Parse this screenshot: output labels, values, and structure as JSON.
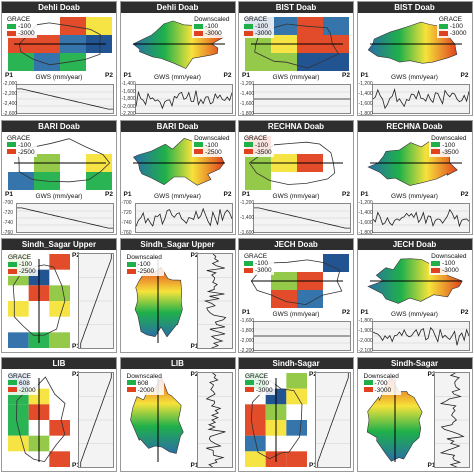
{
  "panels": [
    {
      "title": "Dehli Doab",
      "legend_title": "GRACE",
      "legend_high": "-100",
      "legend_low": "-3000",
      "p1": "P1",
      "p2": "P2",
      "gws_label": "GWS (mm/year)",
      "trend": "decline",
      "type": "grace",
      "orient": "h",
      "ticks": [
        "-2,000",
        "-2,200",
        "-2,400",
        "-2,600"
      ]
    },
    {
      "title": "Dehli Doab",
      "legend_title": "Downscaled",
      "legend_high": "-100",
      "legend_low": "-3000",
      "p1": "P1",
      "p2": "P2",
      "gws_label": "GWS (mm/year)",
      "trend": "noisy",
      "type": "down",
      "orient": "h",
      "ticks": [
        "-1,400",
        "-1,600",
        "-1,800",
        "-2,000",
        "-2,200"
      ],
      "xticks": [
        "0",
        "0.2",
        "0.4",
        "0.6",
        "0.8",
        "1",
        "1.2",
        "1.4",
        "1.6",
        "1.8",
        "2"
      ]
    },
    {
      "title": "BIST Doab",
      "legend_title": "GRACE",
      "legend_high": "-100",
      "legend_low": "-3000",
      "p1": "P1",
      "p2": "P2",
      "gws_label": "GWS (mm/year)",
      "trend": "flat",
      "type": "grace",
      "orient": "h",
      "ticks": [
        "-1,200",
        "-1,400",
        "-1,600",
        "-1,800"
      ]
    },
    {
      "title": "BIST Doab",
      "legend_title": "GRACE",
      "legend_high": "-100",
      "legend_low": "-3000",
      "p1": "P1",
      "p2": "P2",
      "gws_label": "GWS (mm/year)",
      "trend": "noisy",
      "type": "down",
      "orient": "h",
      "ticks": [
        "-1,200",
        "-1,400",
        "-1,600",
        "-1,800"
      ],
      "xticks": [
        "0",
        "0.2",
        "0.4",
        "0.6",
        "0.8",
        "1",
        "1.2",
        "1.4",
        "1.6",
        "1.8",
        "2"
      ]
    },
    {
      "title": "BARI Doab",
      "legend_title": "GRACE",
      "legend_high": "-100",
      "legend_low": "-2500",
      "p1": "P1",
      "p2": "P2",
      "gws_label": "GWS (mm/year)",
      "trend": "decline",
      "type": "grace",
      "orient": "h",
      "ticks": [
        "-700",
        "-720",
        "-740",
        "-760"
      ],
      "xticks": [
        "0",
        "0.2",
        "0.4",
        "0.6",
        "0.8",
        "1",
        "1.2",
        "1.4",
        "1.6",
        "1.8",
        "2"
      ]
    },
    {
      "title": "BARI Doab",
      "legend_title": "Downscaled",
      "legend_high": "-100",
      "legend_low": "-2500",
      "p1": "P1",
      "p2": "P2",
      "gws_label": "GWS (mm/year)",
      "trend": "noisy",
      "type": "down",
      "orient": "h",
      "ticks": [
        "-700",
        "-720",
        "-740",
        "-760"
      ],
      "xticks": [
        "0",
        "0.2",
        "0.4",
        "0.6",
        "0.8",
        "1",
        "1.2",
        "1.4",
        "1.6",
        "1.8",
        "2"
      ]
    },
    {
      "title": "RECHNA Doab",
      "legend_title": "GRACE",
      "legend_high": "-100",
      "legend_low": "-3500",
      "p1": "P1",
      "p2": "P2",
      "gws_label": "GWS (mm/year)",
      "trend": "decline",
      "type": "grace",
      "orient": "h",
      "ticks": [
        "-1,200",
        "-1,400",
        "-1,600"
      ],
      "xticks": [
        "0",
        "0.2",
        "0.4",
        "0.6",
        "0.8",
        "1",
        "1.2",
        "1.4",
        "1.6",
        "1.8",
        "2"
      ]
    },
    {
      "title": "RECHNA Doab",
      "legend_title": "Downscaled",
      "legend_high": "-100",
      "legend_low": "-3500",
      "p1": "P1",
      "p2": "P2",
      "gws_label": "GWS (mm/year)",
      "trend": "noisy",
      "type": "down",
      "orient": "h",
      "ticks": [
        "-1,200",
        "-1,400",
        "-1,600",
        "-1,800"
      ],
      "xticks": [
        "0",
        "0.2",
        "0.4",
        "0.6",
        "0.8",
        "1",
        "1.2",
        "1.4",
        "1.6",
        "1.8",
        "2"
      ]
    },
    {
      "title": "Sindh_Sagar Upper",
      "legend_title": "GRACE",
      "legend_high": "-100",
      "legend_low": "-2500",
      "p1": "P1",
      "p2": "P2",
      "gws_label": "GWS (mm/year)",
      "trend": "decline",
      "type": "grace",
      "orient": "v",
      "ticks": [
        "-800",
        "-1,000",
        "-1,200"
      ],
      "xticks": [
        "0",
        "0.2",
        "0.4",
        "0.6",
        "0.8",
        "1",
        "1.2",
        "1.4",
        "1.6",
        "1.8",
        "2"
      ]
    },
    {
      "title": "Sindh_Sagar Upper",
      "legend_title": "Downscaled",
      "legend_high": "-100",
      "legend_low": "-2500",
      "p1": "P1",
      "p2": "P2",
      "gws_label": "GWS (mm/year)",
      "trend": "noisy",
      "type": "down",
      "orient": "v",
      "ticks": [
        "-800",
        "-1,000",
        "-1,200"
      ],
      "xticks": [
        "0",
        "0.2",
        "0.4",
        "0.6",
        "0.8",
        "1",
        "1.2",
        "1.4",
        "1.6",
        "1.8",
        "2"
      ]
    },
    {
      "title": "JECH Doab",
      "legend_title": "GRACE",
      "legend_high": "-100",
      "legend_low": "-3000",
      "p1": "P1",
      "p2": "P2",
      "gws_label": "GWS (mm/year)",
      "trend": "flat",
      "type": "grace",
      "orient": "h",
      "ticks": [
        "-1,600",
        "-1,800",
        "-2,000",
        "-2,200"
      ],
      "xticks": [
        "0",
        "0.2",
        "0.4",
        "0.6",
        "0.8",
        "1",
        "1.2",
        "1.4",
        "1.6",
        "1.8",
        "2"
      ]
    },
    {
      "title": "JECH Doab",
      "legend_title": "Downscaled",
      "legend_high": "-100",
      "legend_low": "-3000",
      "p1": "P1",
      "p2": "P2",
      "gws_label": "GWS (mm/year)",
      "trend": "noisy",
      "type": "down",
      "orient": "h",
      "ticks": [
        "-1,800",
        "-1,900",
        "-2,000",
        "-2,100"
      ],
      "xticks": [
        "0",
        "0.2",
        "0.4",
        "0.6",
        "0.8",
        "1",
        "1.2",
        "1.4",
        "1.6",
        "1.8",
        "2"
      ]
    },
    {
      "title": "LIB",
      "legend_title": "GRACE",
      "legend_high": "608",
      "legend_low": "-2000",
      "p1": "P1",
      "p2": "P2",
      "gws_label": "GWS (mm/year)",
      "trend": "decline",
      "type": "grace",
      "orient": "v",
      "ticks": [
        "-100",
        "-200",
        "-300"
      ],
      "xticks": [
        "0",
        "0.2",
        "0.4",
        "0.6",
        "0.8",
        "1",
        "1.2",
        "1.4",
        "1.6",
        "1.8",
        "2"
      ]
    },
    {
      "title": "LIB",
      "legend_title": "Downscaled",
      "legend_high": "608",
      "legend_low": "-2000",
      "p1": "P1",
      "p2": "P2",
      "gws_label": "GWS (mm/year)",
      "trend": "noisy",
      "type": "down",
      "orient": "v",
      "ticks": [
        "-200",
        "-400",
        "-600"
      ],
      "xticks": [
        "0",
        "0.2",
        "0.4",
        "0.6",
        "0.8",
        "1",
        "1.2",
        "1.4",
        "1.6",
        "1.8",
        "2"
      ]
    },
    {
      "title": "Sindh-Sagar",
      "legend_title": "GRACE",
      "legend_high": "-700",
      "legend_low": "-3000",
      "p1": "P1",
      "p2": "P2",
      "gws_label": "GWS (mm/year)",
      "trend": "decline",
      "type": "grace",
      "orient": "v",
      "ticks": [
        "-1,000",
        "-1,500",
        "-2,000"
      ],
      "xticks": [
        "0",
        "0.2",
        "0.4",
        "0.6",
        "0.8",
        "1",
        "1.2",
        "1.4",
        "1.6",
        "1.8",
        "2"
      ]
    },
    {
      "title": "Sindh-Sagar",
      "legend_title": "Downscaled",
      "legend_high": "-700",
      "legend_low": "-3000",
      "p1": "P1",
      "p2": "P2",
      "gws_label": "GWS (mm/year)",
      "trend": "noisy",
      "type": "down",
      "orient": "v",
      "ticks": [
        "-1,000",
        "-1,500",
        "-2,000"
      ],
      "xticks": [
        "0",
        "0.2",
        "0.4",
        "0.6",
        "0.8",
        "1",
        "1.2",
        "1.4",
        "1.6",
        "1.8",
        "2"
      ]
    }
  ],
  "colors": {
    "high": "#1fb04a",
    "mid": "#f6e33a",
    "low": "#e0421f",
    "blue": "#174b8c",
    "deep": "#2a6ea8",
    "plot_bg": "#f3f3f3"
  }
}
